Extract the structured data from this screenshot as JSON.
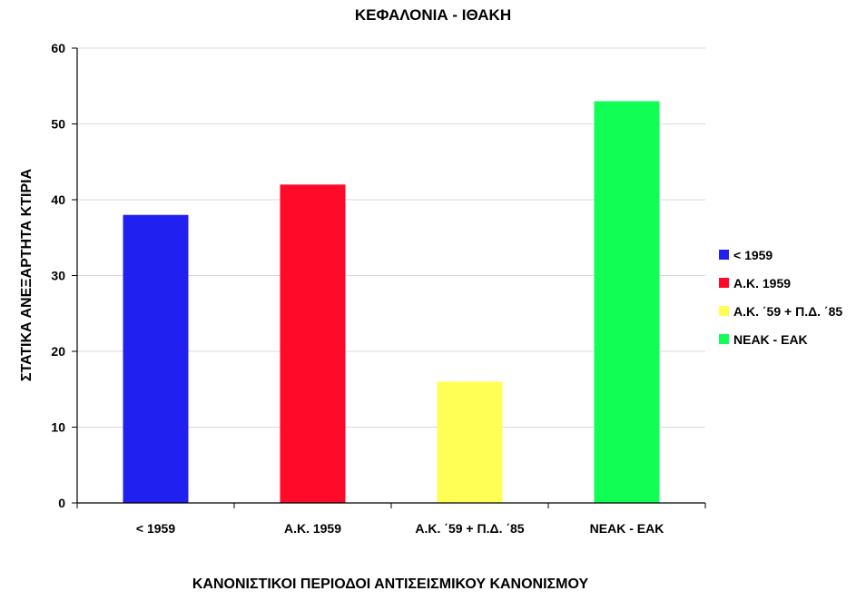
{
  "chart_data": {
    "type": "bar",
    "title": "ΚΕΦΑΛΟΝΙΑ - ΙΘΑΚΗ",
    "xlabel": "ΚΑΝΟΝΙΣΤΙΚΟΙ ΠΕΡΙΟΔΟΙ ΑΝΤΙΣΕΙΣΜΙΚΟΥ ΚΑΝΟΝΙΣΜΟΥ",
    "ylabel": "ΣΤΑΤΙΚΑ ΑΝΕΞΑΡΤΗΤΑ ΚΤΙΡΙΑ",
    "categories": [
      "< 1959",
      "Α.Κ. 1959",
      "Α.Κ. ΄59 + Π.Δ. ΄85",
      "ΝΕΑΚ - ΕΑΚ"
    ],
    "values": [
      38,
      42,
      16,
      53
    ],
    "colors": [
      "#2020f0",
      "#ff0a28",
      "#ffff55",
      "#11ff55"
    ],
    "ylim": [
      0,
      60
    ],
    "yticks": [
      0,
      10,
      20,
      30,
      40,
      50,
      60
    ],
    "grid": true,
    "legend": {
      "placement": "right",
      "entries": [
        "< 1959",
        "Α.Κ. 1959",
        "Α.Κ. ΄59 + Π.Δ. ΄85",
        "ΝΕΑΚ - ΕΑΚ"
      ]
    }
  }
}
